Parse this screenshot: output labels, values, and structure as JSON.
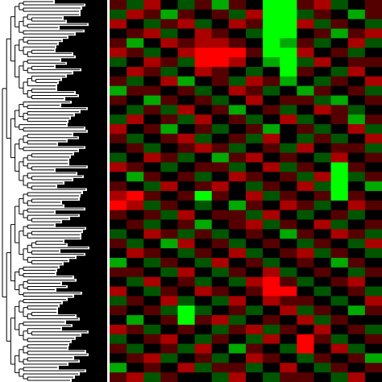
{
  "chart_data": {
    "type": "heatmap",
    "colors": [
      "#00ff00",
      "#000000",
      "#ff0000"
    ],
    "zlim": [
      -3,
      3
    ],
    "values": [
      [
        1,
        -1,
        2,
        0,
        -1,
        1,
        -2,
        1,
        0,
        -3,
        -3,
        1,
        2,
        -1,
        0,
        1
      ],
      [
        -1,
        2,
        1,
        -2,
        1,
        0,
        1,
        -1,
        2,
        -3,
        -3,
        -1,
        1,
        0,
        -2,
        1
      ],
      [
        2,
        0,
        -1,
        1,
        2,
        -1,
        0,
        2,
        1,
        -3,
        -3,
        2,
        -1,
        1,
        0,
        -1
      ],
      [
        0,
        1,
        2,
        -1,
        0,
        2,
        1,
        0,
        -1,
        -3,
        -3,
        0,
        1,
        -2,
        1,
        2
      ],
      [
        1,
        -2,
        0,
        2,
        1,
        2,
        2,
        1,
        0,
        -3,
        -2,
        1,
        -1,
        0,
        2,
        -1
      ],
      [
        2,
        1,
        -1,
        0,
        2,
        3,
        3,
        3,
        1,
        -3,
        -3,
        2,
        0,
        1,
        -1,
        0
      ],
      [
        -1,
        0,
        2,
        1,
        -1,
        3,
        3,
        2,
        0,
        -2,
        -3,
        -1,
        2,
        0,
        1,
        1
      ],
      [
        0,
        2,
        1,
        -1,
        0,
        2,
        1,
        0,
        -1,
        0,
        -3,
        1,
        0,
        -1,
        2,
        0
      ],
      [
        1,
        -1,
        0,
        2,
        -2,
        0,
        1,
        -1,
        2,
        1,
        -2,
        0,
        -1,
        1,
        0,
        2
      ],
      [
        -2,
        1,
        1,
        0,
        1,
        -1,
        0,
        2,
        1,
        -1,
        0,
        -2,
        1,
        0,
        1,
        -1
      ],
      [
        1,
        0,
        -2,
        1,
        0,
        1,
        -1,
        0,
        2,
        0,
        1,
        1,
        -1,
        -2,
        0,
        1
      ],
      [
        0,
        -1,
        1,
        -1,
        2,
        0,
        1,
        -2,
        0,
        1,
        -1,
        0,
        2,
        1,
        -1,
        0
      ],
      [
        -1,
        2,
        0,
        1,
        -1,
        2,
        0,
        1,
        -1,
        0,
        2,
        -1,
        0,
        1,
        -2,
        1
      ],
      [
        2,
        0,
        1,
        -2,
        0,
        1,
        -1,
        0,
        1,
        -2,
        0,
        1,
        -1,
        0,
        2,
        -1
      ],
      [
        1,
        -1,
        0,
        1,
        2,
        -1,
        0,
        1,
        -1,
        2,
        0,
        -1,
        1,
        -1,
        0,
        2
      ],
      [
        0,
        1,
        -1,
        0,
        1,
        2,
        1,
        -1,
        0,
        1,
        -1,
        2,
        0,
        1,
        1,
        -1
      ],
      [
        -1,
        0,
        2,
        1,
        -1,
        0,
        -2,
        1,
        2,
        0,
        1,
        0,
        -1,
        2,
        0,
        1
      ],
      [
        2,
        1,
        0,
        -1,
        0,
        1,
        1,
        -1,
        0,
        2,
        -1,
        1,
        0,
        -3,
        1,
        0
      ],
      [
        0,
        -2,
        1,
        0,
        1,
        -1,
        0,
        2,
        1,
        0,
        1,
        -1,
        2,
        -3,
        -1,
        1
      ],
      [
        1,
        0,
        -1,
        2,
        0,
        1,
        2,
        0,
        -1,
        1,
        0,
        2,
        -1,
        -3,
        0,
        -2
      ],
      [
        2,
        3,
        1,
        0,
        1,
        -3,
        1,
        0,
        2,
        -1,
        1,
        0,
        1,
        -3,
        1,
        0
      ],
      [
        3,
        2,
        -1,
        1,
        0,
        -1,
        0,
        -2,
        1,
        0,
        2,
        1,
        -1,
        0,
        2,
        1
      ],
      [
        1,
        0,
        1,
        -1,
        2,
        0,
        1,
        1,
        -1,
        2,
        0,
        -1,
        0,
        1,
        -1,
        0
      ],
      [
        0,
        1,
        -1,
        0,
        1,
        -2,
        0,
        1,
        2,
        -1,
        1,
        0,
        2,
        -1,
        0,
        1
      ],
      [
        -1,
        0,
        2,
        1,
        -1,
        1,
        -1,
        0,
        1,
        0,
        -2,
        1,
        0,
        2,
        1,
        -1
      ],
      [
        1,
        -1,
        0,
        -2,
        2,
        0,
        1,
        -1,
        0,
        1,
        0,
        -1,
        1,
        0,
        -1,
        2
      ],
      [
        0,
        2,
        1,
        0,
        -1,
        1,
        0,
        2,
        -1,
        0,
        1,
        2,
        -1,
        1,
        0,
        -1
      ],
      [
        -2,
        0,
        -1,
        1,
        0,
        -1,
        2,
        0,
        1,
        -1,
        0,
        1,
        0,
        -2,
        1,
        0
      ],
      [
        1,
        1,
        0,
        -1,
        2,
        0,
        -1,
        1,
        0,
        2,
        -1,
        0,
        1,
        0,
        -1,
        1
      ],
      [
        0,
        -1,
        2,
        0,
        1,
        -1,
        0,
        -1,
        2,
        3,
        1,
        -1,
        0,
        1,
        2,
        0
      ],
      [
        2,
        0,
        -1,
        1,
        0,
        2,
        1,
        0,
        1,
        3,
        3,
        0,
        -1,
        0,
        1,
        -1
      ],
      [
        -1,
        1,
        0,
        2,
        -1,
        0,
        -1,
        2,
        0,
        2,
        1,
        1,
        0,
        -1,
        0,
        2
      ],
      [
        1,
        0,
        1,
        -1,
        -3,
        -1,
        0,
        1,
        -1,
        0,
        2,
        -1,
        1,
        0,
        -2,
        1
      ],
      [
        0,
        -2,
        0,
        1,
        -3,
        1,
        2,
        -1,
        0,
        1,
        0,
        2,
        -1,
        1,
        0,
        0
      ],
      [
        2,
        1,
        -1,
        0,
        1,
        0,
        -1,
        1,
        2,
        -1,
        1,
        0,
        2,
        0,
        1,
        -1
      ],
      [
        -1,
        0,
        1,
        2,
        0,
        -1,
        1,
        0,
        -1,
        2,
        0,
        3,
        1,
        -1,
        0,
        1
      ],
      [
        1,
        -1,
        0,
        1,
        -1,
        2,
        0,
        -2,
        1,
        0,
        -1,
        3,
        0,
        2,
        -1,
        0
      ],
      [
        0,
        1,
        2,
        -1,
        0,
        1,
        -1,
        0,
        2,
        1,
        0,
        -1,
        1,
        0,
        1,
        -2
      ],
      [
        -2,
        0,
        1,
        0,
        2,
        -1,
        1,
        1,
        -1,
        0,
        2,
        0,
        -1,
        1,
        0,
        1
      ],
      [
        1,
        2,
        -1,
        1,
        0,
        0,
        -1,
        2,
        0,
        -1,
        1,
        1,
        0,
        -1,
        2,
        0
      ]
    ]
  }
}
